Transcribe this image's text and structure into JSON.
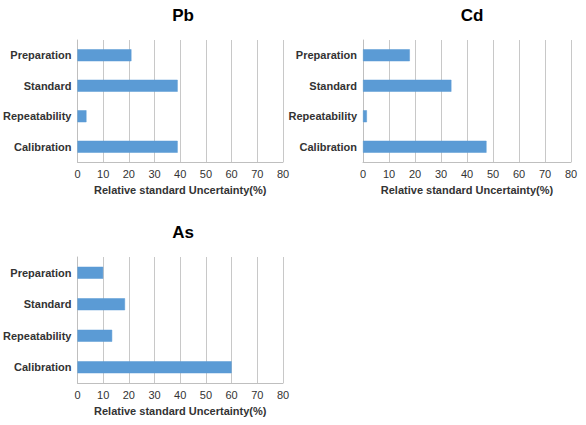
{
  "chart_data": [
    {
      "type": "bar",
      "title": "Pb",
      "orientation": "horizontal",
      "categories": [
        "Preparation",
        "Standard",
        "Repeatability",
        "Calibration"
      ],
      "values": [
        21,
        39,
        3.5,
        39
      ],
      "color": "#5b9bd5",
      "xlabel": "Relative standard Uncertainty(%)",
      "xlim": [
        0,
        80
      ],
      "xticks": [
        0,
        10,
        20,
        30,
        40,
        50,
        60,
        70,
        80
      ],
      "grid": true
    },
    {
      "type": "bar",
      "title": "Cd",
      "orientation": "horizontal",
      "categories": [
        "Preparation",
        "Standard",
        "Repeatability",
        "Calibration"
      ],
      "values": [
        18,
        34,
        1.5,
        47.5
      ],
      "color": "#5b9bd5",
      "xlabel": "Relative standard Uncertainty(%)",
      "xlim": [
        0,
        80
      ],
      "xticks": [
        0,
        10,
        20,
        30,
        40,
        50,
        60,
        70,
        80
      ],
      "grid": true
    },
    {
      "type": "bar",
      "title": "As",
      "orientation": "horizontal",
      "categories": [
        "Preparation",
        "Standard",
        "Repeatability",
        "Calibration"
      ],
      "values": [
        10,
        18.5,
        13.5,
        60
      ],
      "color": "#5b9bd5",
      "xlabel": "Relative standard Uncertainty(%)",
      "xlim": [
        0,
        80
      ],
      "xticks": [
        0,
        10,
        20,
        30,
        40,
        50,
        60,
        70,
        80
      ],
      "grid": true
    }
  ]
}
